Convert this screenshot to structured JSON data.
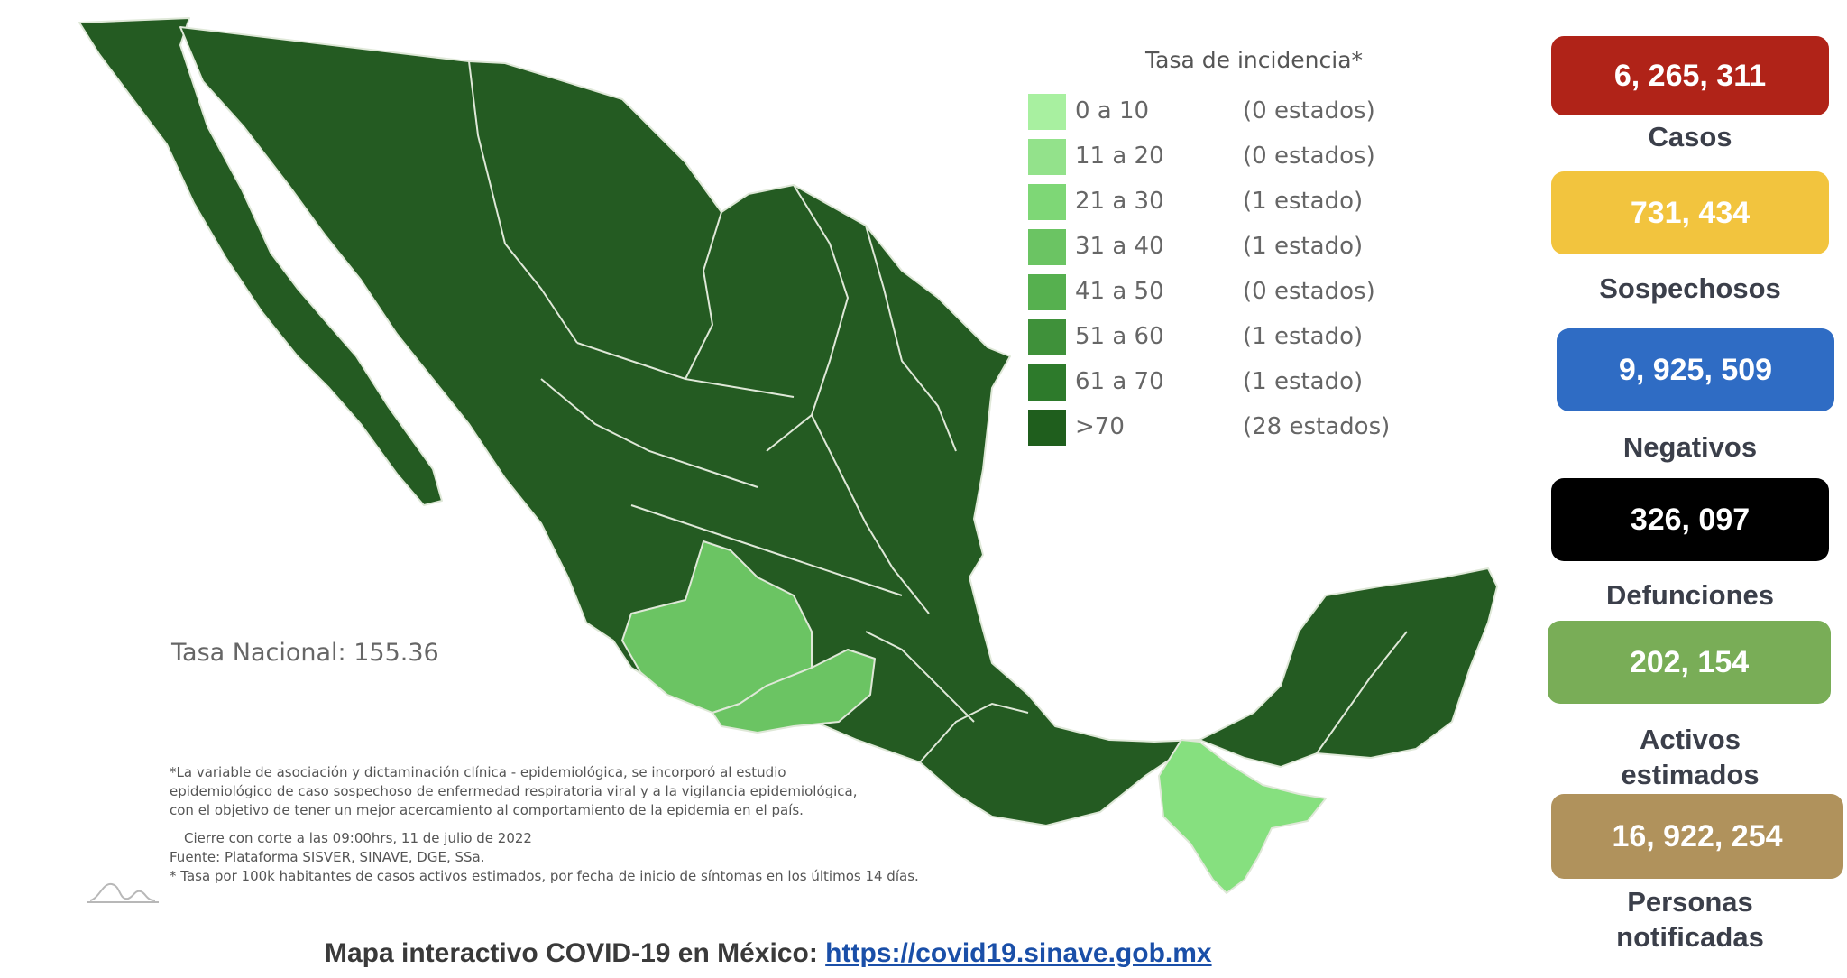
{
  "legend": {
    "title": "Tasa de incidencia*",
    "items": [
      {
        "range": "0 a  10",
        "count": "(0 estados)",
        "color": "#a8f0a0"
      },
      {
        "range": "11 a  20",
        "count": "(0 estados)",
        "color": "#93e28b"
      },
      {
        "range": "21 a  30",
        "count": "(1 estado)",
        "color": "#7ed776"
      },
      {
        "range": "31 a  40",
        "count": "(1 estado)",
        "color": "#6bc463"
      },
      {
        "range": "41 a  50",
        "count": "(0 estados)",
        "color": "#56b04f"
      },
      {
        "range": "51 a  60",
        "count": "(1 estado)",
        "color": "#3f913a"
      },
      {
        "range": "61 a  70",
        "count": "(1 estado)",
        "color": "#2d7a2b"
      },
      {
        "range": ">70",
        "count": "(28 estados)",
        "color": "#1f5e1d"
      }
    ]
  },
  "map": {
    "tasa_nacional": "Tasa Nacional: 155.36",
    "colors": {
      "dark": "#245b22",
      "medium": "#3f913a",
      "light": "#6bc463",
      "lightest": "#86e07f"
    }
  },
  "notes": {
    "lines": [
      "*La variable de asociación y dictaminación clínica - epidemiológica, se incorporó al estudio",
      "epidemiológico de caso sospechoso de enfermedad respiratoria viral y a la vigilancia epidemiológica,",
      "con el objetivo de tener un mejor acercamiento al comportamiento de la epidemia en el país."
    ],
    "cierre": "Cierre con corte a las 09:00hrs, 11 de julio de 2022",
    "fuente": "Fuente: Plataforma SISVER, SINAVE, DGE, SSa.",
    "tasa": "* Tasa por 100k habitantes de casos activos estimados, por fecha de inicio de síntomas en los últimos 14 días."
  },
  "footer": {
    "text": "Mapa interactivo COVID-19 en México: ",
    "link": "https://covid19.sinave.gob.mx"
  },
  "stats": [
    {
      "value": "6, 265, 311",
      "label": "Casos",
      "color": "#b02318"
    },
    {
      "value": "731, 434",
      "label": "Sospechosos",
      "color": "#f2c43e"
    },
    {
      "value": "9, 925, 509",
      "label": "Negativos",
      "color": "#2f6cc4"
    },
    {
      "value": "326, 097",
      "label": "Defunciones",
      "color": "#000000"
    },
    {
      "value": "202, 154",
      "label": "Activos\nestimados",
      "color": "#79ad57"
    },
    {
      "value": "16, 922, 254",
      "label": "Personas\nnotificadas",
      "color": "#b0925c"
    }
  ]
}
